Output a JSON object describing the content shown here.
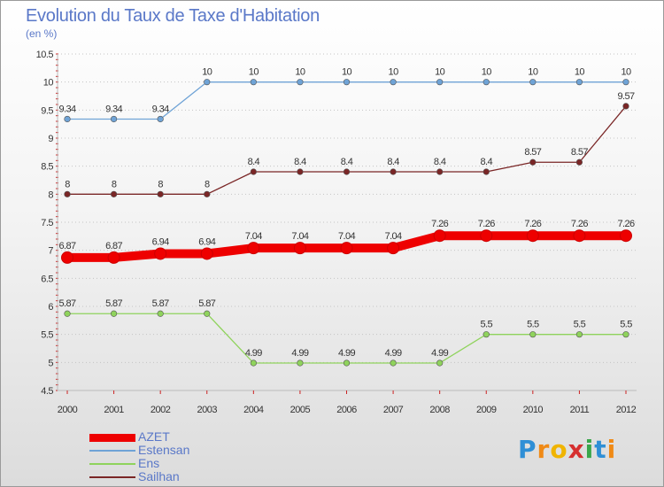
{
  "title": "Evolution du Taux de Taxe d'Habitation",
  "subtitle": "(en %)",
  "chart_data": {
    "type": "line",
    "title": "Evolution du Taux de Taxe d'Habitation",
    "ylabel": "(en %)",
    "xlabel": "",
    "x": [
      2000,
      2001,
      2002,
      2003,
      2004,
      2005,
      2006,
      2007,
      2008,
      2009,
      2010,
      2011,
      2012
    ],
    "ylim": [
      4.5,
      10.5
    ],
    "yticks": [
      4.5,
      5,
      5.5,
      6,
      6.5,
      7,
      7.5,
      8,
      8.5,
      9,
      9.5,
      10,
      10.5
    ],
    "grid": "horizontal dotted",
    "legend_position": "bottom-left",
    "series": [
      {
        "name": "AZET",
        "color": "#ee0000",
        "values": [
          6.87,
          6.87,
          6.94,
          6.94,
          7.04,
          7.04,
          7.04,
          7.04,
          7.26,
          7.26,
          7.26,
          7.26,
          7.26
        ],
        "labels": [
          "6.87",
          "6.87",
          "6.94",
          "6.94",
          "7.04",
          "7.04",
          "7.04",
          "7.04",
          "7.26",
          "7.26",
          "7.26",
          "7.26",
          "7.26"
        ]
      },
      {
        "name": "Estensan",
        "color": "#6fa3d6",
        "values": [
          9.34,
          9.34,
          9.34,
          10,
          10,
          10,
          10,
          10,
          10,
          10,
          10,
          10,
          10
        ],
        "labels": [
          "9.34",
          "9.34",
          "9.34",
          "10",
          "10",
          "10",
          "10",
          "10",
          "10",
          "10",
          "10",
          "10",
          "10"
        ]
      },
      {
        "name": "Ens",
        "color": "#8fd35c",
        "values": [
          5.87,
          5.87,
          5.87,
          5.87,
          4.99,
          4.99,
          4.99,
          4.99,
          4.99,
          5.5,
          5.5,
          5.5,
          5.5
        ],
        "labels": [
          "5.87",
          "5.87",
          "5.87",
          "5.87",
          "4.99",
          "4.99",
          "4.99",
          "4.99",
          "4.99",
          "5.5",
          "5.5",
          "5.5",
          "5.5"
        ]
      },
      {
        "name": "Sailhan",
        "color": "#7a2626",
        "values": [
          8,
          8,
          8,
          8,
          8.4,
          8.4,
          8.4,
          8.4,
          8.4,
          8.4,
          8.57,
          8.57,
          9.57
        ],
        "labels": [
          "8",
          "8",
          "8",
          "8",
          "8.4",
          "8.4",
          "8.4",
          "8.4",
          "8.4",
          "8.4",
          "8.57",
          "8.57",
          "9.57"
        ]
      }
    ]
  },
  "legend": [
    {
      "label": "AZET",
      "color": "#ee0000",
      "thickness": "thick"
    },
    {
      "label": "Estensan",
      "color": "#6fa3d6",
      "thickness": "thin"
    },
    {
      "label": "Ens",
      "color": "#8fd35c",
      "thickness": "thin"
    },
    {
      "label": "Sailhan",
      "color": "#7a2626",
      "thickness": "thin"
    }
  ],
  "logo": {
    "letters": [
      "P",
      "r",
      "o",
      "x",
      "i",
      "t",
      "i"
    ],
    "colors": [
      "#2f8fd6",
      "#f08a16",
      "#f0b400",
      "#d62f2f",
      "#3aa64a",
      "#2f8fd6",
      "#f08a16"
    ]
  }
}
